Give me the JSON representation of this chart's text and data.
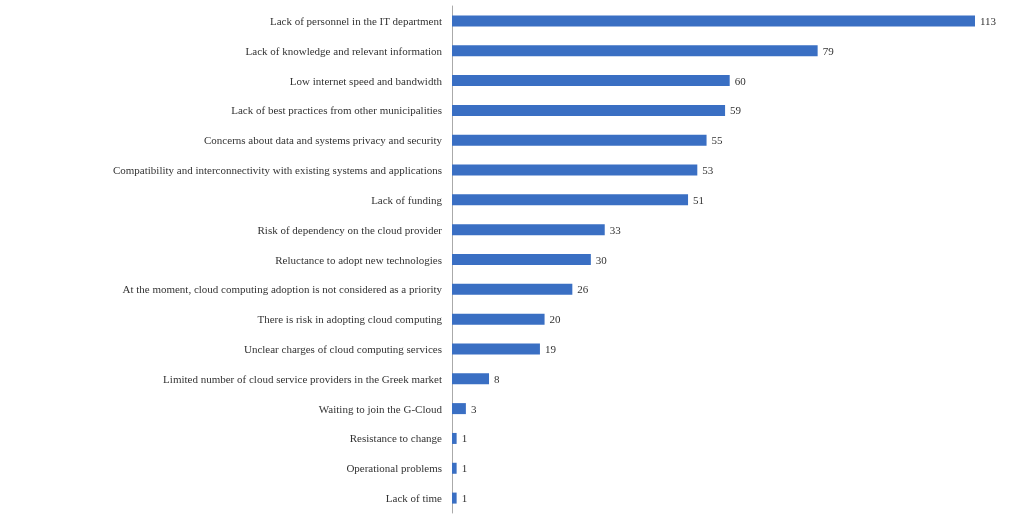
{
  "chart_data": {
    "type": "bar",
    "orientation": "horizontal",
    "data_labels": true,
    "categories": [
      "Lack of personnel in the IT department",
      "Lack of knowledge and relevant information",
      "Low internet speed and bandwidth",
      "Lack of best practices from other municipalities",
      "Concerns about data and systems privacy and security",
      "Compatibility and interconnectivity with existing systems and applications",
      "Lack of funding",
      "Risk of dependency on the cloud provider",
      "Reluctance to adopt new technologies",
      "At the moment, cloud computing adoption is not considered as a priority",
      "There is risk in adopting cloud computing",
      "Unclear charges of cloud computing services",
      "Limited number of cloud service providers in the Greek market",
      "Waiting to join the G-Cloud",
      "Resistance to change",
      "Operational problems",
      "Lack of time"
    ],
    "series": [
      {
        "color": "#3a6fc3",
        "values": [
          113,
          79,
          60,
          59,
          55,
          53,
          51,
          33,
          30,
          26,
          20,
          19,
          8,
          3,
          1,
          1,
          1
        ]
      }
    ]
  }
}
